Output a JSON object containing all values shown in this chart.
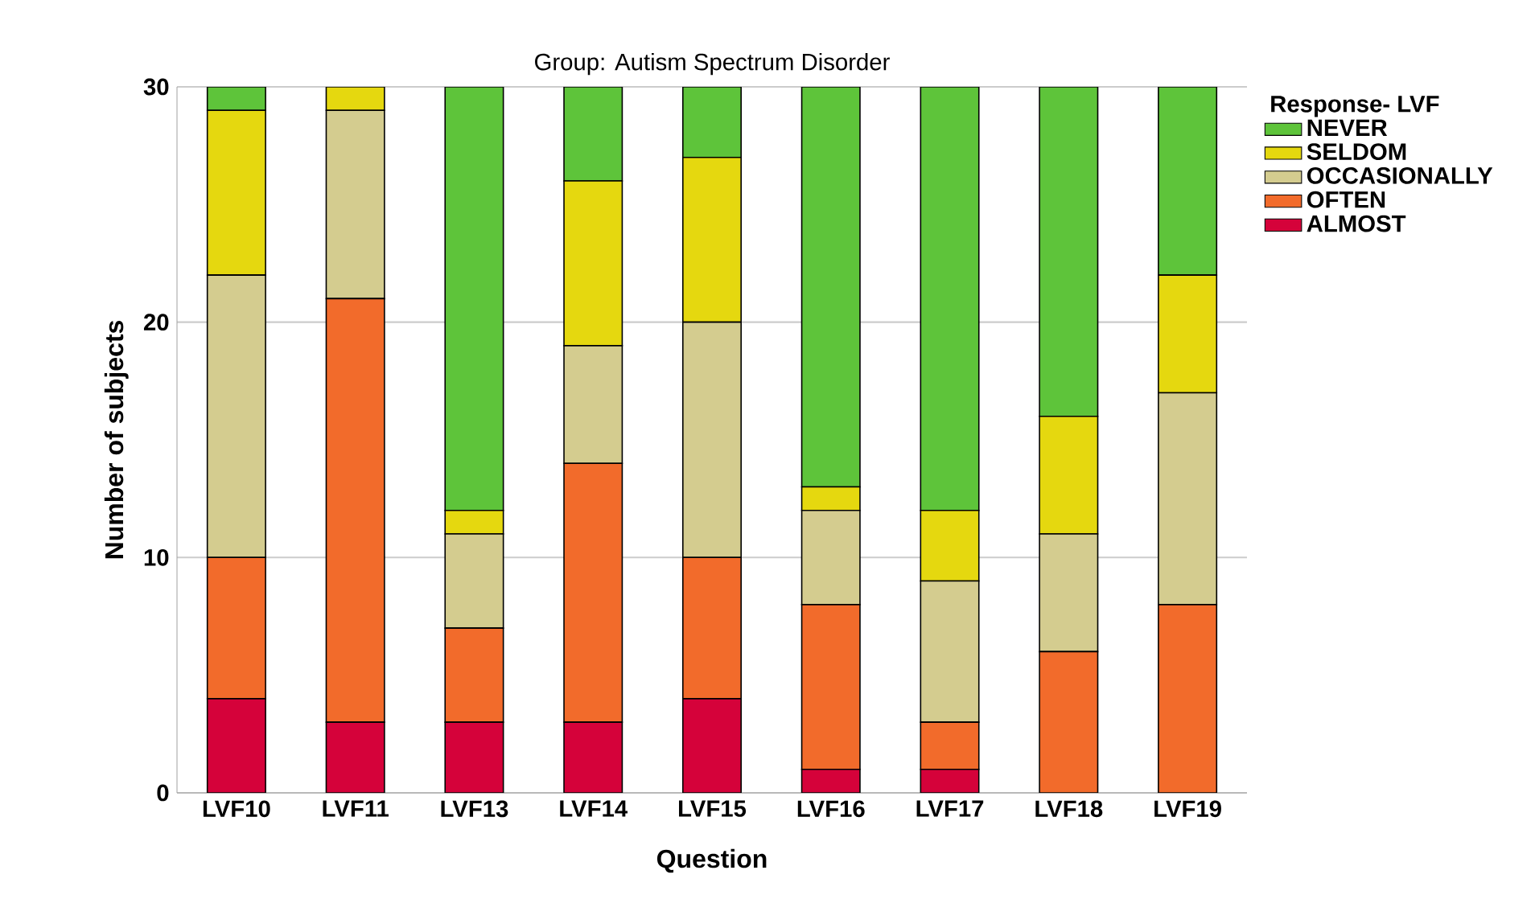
{
  "chart_data": {
    "type": "bar",
    "stacked": true,
    "title": "Group: Autism Spectrum Disorder",
    "xlabel": "Question",
    "ylabel": "Number of subjects",
    "legend_title": "Response- LVF",
    "legend": "right",
    "grid": "y",
    "categories": [
      "LVF10",
      "LVF11",
      "LVF13",
      "LVF14",
      "LVF15",
      "LVF16",
      "LVF17",
      "LVF18",
      "LVF19"
    ],
    "ylim": [
      0,
      30
    ],
    "yticks": [
      0,
      10,
      20,
      30
    ],
    "series": [
      {
        "name": "ALMOST",
        "color": "#d5023a",
        "values": [
          4,
          3,
          3,
          3,
          4,
          1,
          1,
          0,
          0
        ]
      },
      {
        "name": "OFTEN",
        "color": "#f26b2b",
        "values": [
          6,
          18,
          4,
          11,
          6,
          7,
          2,
          6,
          8
        ]
      },
      {
        "name": "OCCASIONALLY",
        "color": "#d4cc8f",
        "values": [
          12,
          8,
          4,
          5,
          10,
          4,
          6,
          5,
          9
        ]
      },
      {
        "name": "SELDOM",
        "color": "#e5d80f",
        "values": [
          7,
          1,
          1,
          7,
          7,
          1,
          3,
          5,
          5
        ]
      },
      {
        "name": "NEVER",
        "color": "#5ec43a",
        "values": [
          1,
          0,
          18,
          4,
          3,
          17,
          18,
          14,
          8
        ]
      }
    ]
  }
}
